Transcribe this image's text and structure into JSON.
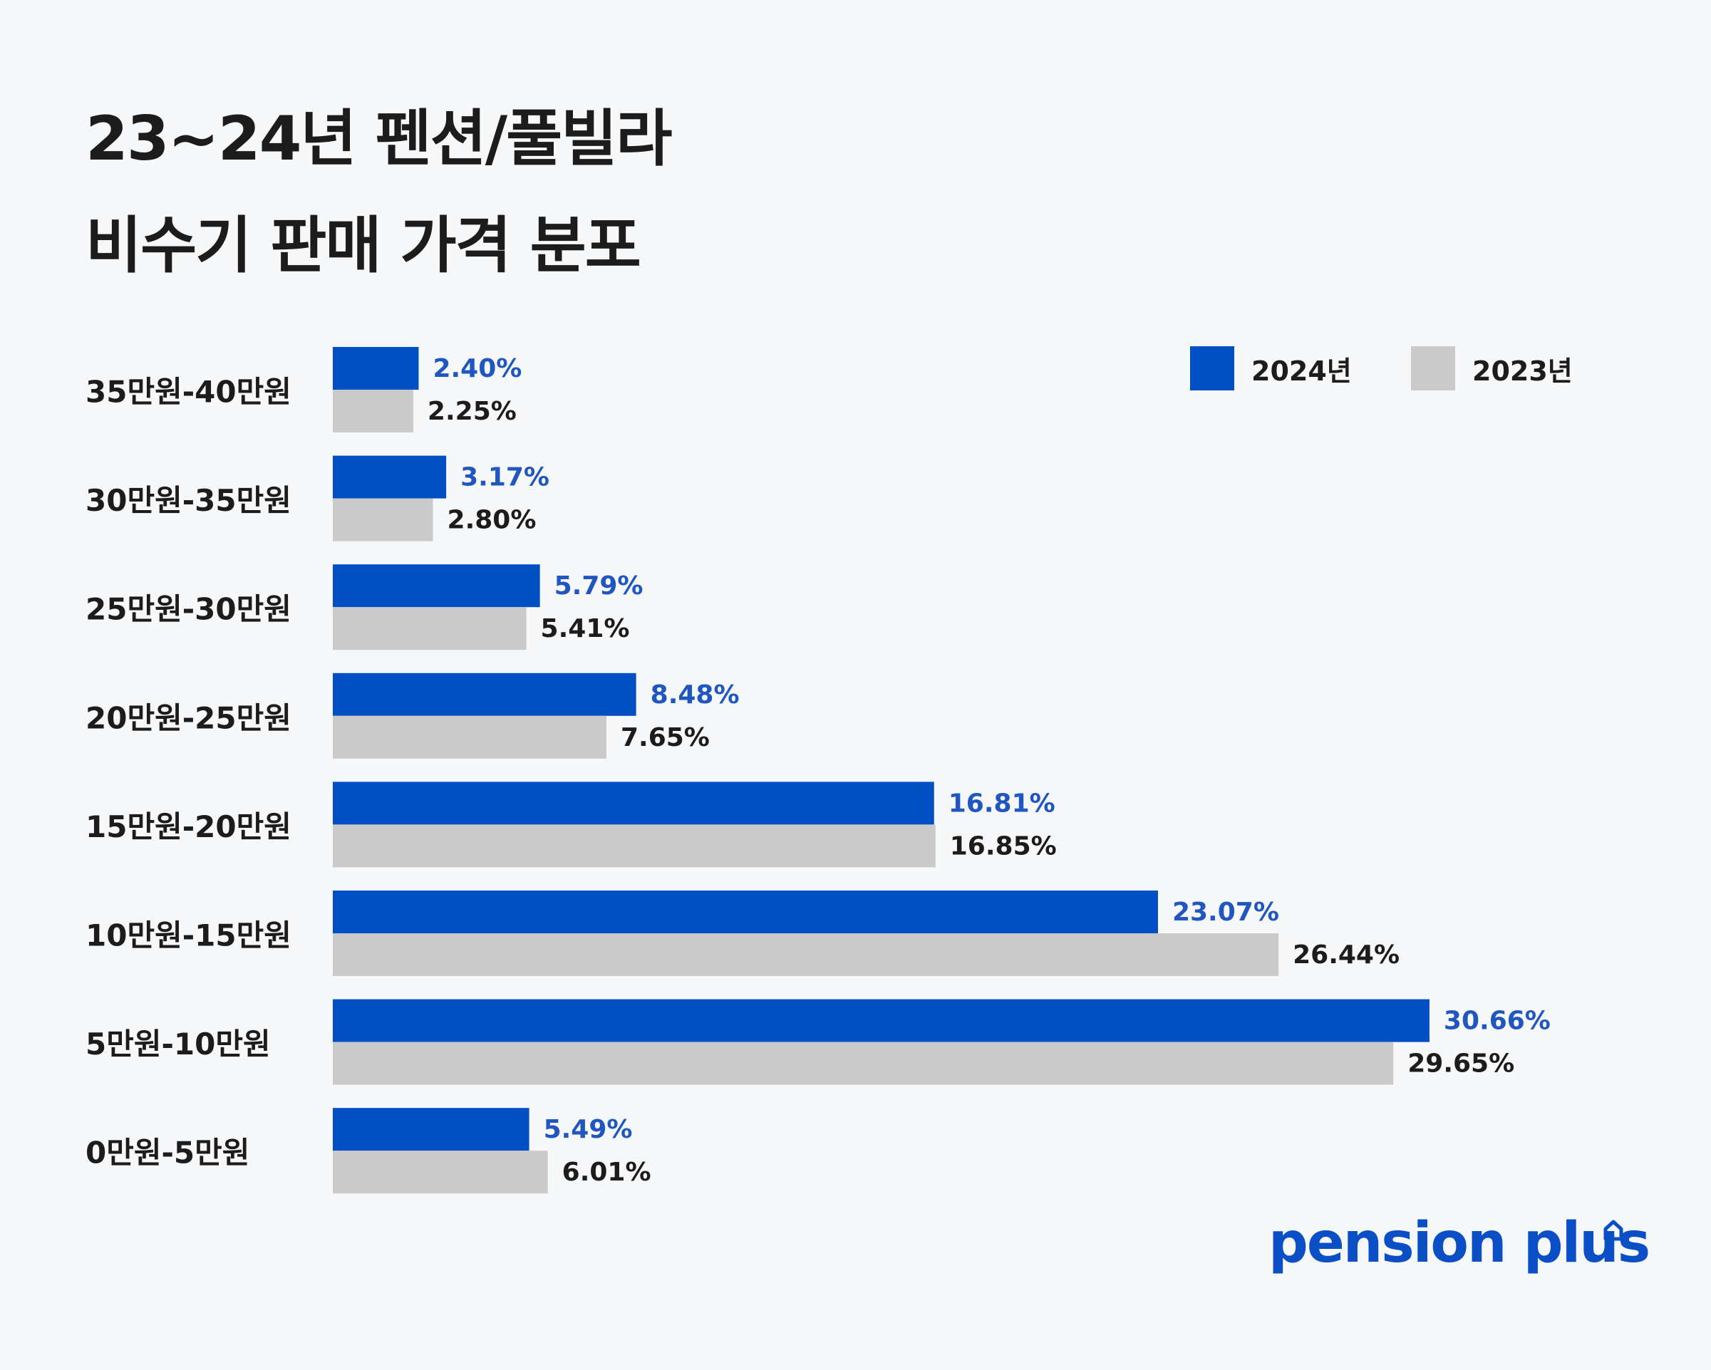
{
  "title": {
    "line1": "23~24년 펜션/풀빌라",
    "line2": "비수기 판매 가격 분포"
  },
  "colors": {
    "series_2024": "#004fc4",
    "series_2023": "#cacaca",
    "label_2024": "#1f56c0",
    "label_2023": "#1c1c1c",
    "background": "#f6f7f9"
  },
  "legend": {
    "items": [
      {
        "label": "2024년",
        "color": "#004fc4"
      },
      {
        "label": "2023년",
        "color": "#cacaca"
      }
    ]
  },
  "chart_data": {
    "type": "bar",
    "orientation": "horizontal",
    "title": "23~24년 펜션/풀빌라 비수기 판매 가격 분포",
    "categories": [
      "35만원-40만원",
      "30만원-35만원",
      "25만원-30만원",
      "20만원-25만원",
      "15만원-20만원",
      "10만원-15만원",
      "5만원-10만원",
      "0만원-5만원"
    ],
    "series": [
      {
        "name": "2024년",
        "values": [
          2.4,
          3.17,
          5.79,
          8.48,
          16.81,
          23.07,
          30.66,
          5.49
        ],
        "labels": [
          "2.40%",
          "3.17%",
          "5.79%",
          "8.48%",
          "16.81%",
          "23.07%",
          "30.66%",
          "5.49%"
        ]
      },
      {
        "name": "2023년",
        "values": [
          2.25,
          2.8,
          5.41,
          7.65,
          16.85,
          26.44,
          29.65,
          6.01
        ],
        "labels": [
          "2.25%",
          "2.80%",
          "5.41%",
          "7.65%",
          "16.85%",
          "26.44%",
          "29.65%",
          "6.01%"
        ]
      }
    ],
    "xlim": [
      0,
      35
    ],
    "xlabel": "",
    "ylabel": "",
    "grid": false,
    "legend_position": "top-right"
  },
  "brand": {
    "logo_text": "pension plus",
    "logo_icon": "house-icon"
  }
}
